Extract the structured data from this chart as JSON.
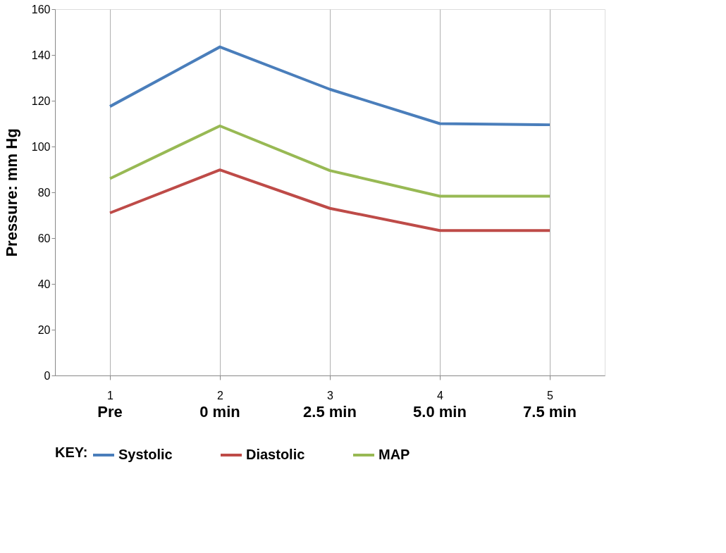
{
  "chart_data": {
    "type": "line",
    "ylabel": "Pressure: mm Hg",
    "legend_title": "KEY:",
    "categories": [
      "1",
      "2",
      "3",
      "4",
      "5"
    ],
    "series": [
      {
        "name": "Systolic",
        "color": "#4a7ebb",
        "values": [
          117.5,
          143.5,
          125,
          110,
          109.5
        ]
      },
      {
        "name": "Diastolic",
        "color": "#be4b48",
        "values": [
          71,
          89.8,
          73,
          63.3,
          63.3
        ]
      },
      {
        "name": "MAP",
        "color": "#98b954",
        "values": [
          86,
          109,
          89.5,
          78.3,
          78.3
        ]
      }
    ],
    "ylim": [
      0,
      160
    ],
    "yticks": [
      0,
      20,
      40,
      60,
      80,
      100,
      120,
      140,
      160
    ],
    "grid": "x",
    "legend": "bottom",
    "marker": "none",
    "line_style": "solid",
    "annotations": [
      "Pre",
      "0 min",
      "2.5 min",
      "5.0 min",
      "7.5 min"
    ]
  }
}
